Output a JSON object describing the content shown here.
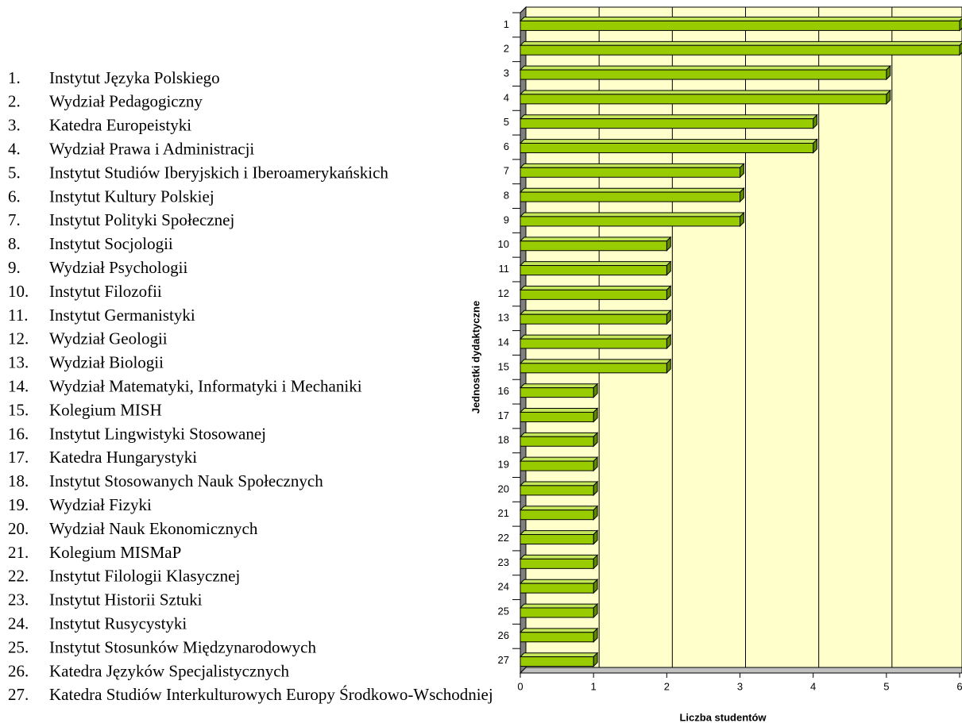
{
  "list": [
    {
      "number": "1.",
      "name": "Instytut Języka Polskiego"
    },
    {
      "number": "2.",
      "name": "Wydział Pedagogiczny"
    },
    {
      "number": "3.",
      "name": "Katedra Europeistyki"
    },
    {
      "number": "4.",
      "name": "Wydział Prawa i Administracji"
    },
    {
      "number": "5.",
      "name": "Instytut Studiów Iberyjskich i Iberoamerykańskich"
    },
    {
      "number": "6.",
      "name": "Instytut Kultury Polskiej"
    },
    {
      "number": "7.",
      "name": "Instytut Polityki Społecznej"
    },
    {
      "number": "8.",
      "name": "Instytut Socjologii"
    },
    {
      "number": "9.",
      "name": "Wydział Psychologii"
    },
    {
      "number": "10.",
      "name": "Instytut Filozofii"
    },
    {
      "number": "11.",
      "name": "Instytut Germanistyki"
    },
    {
      "number": "12.",
      "name": "Wydział Geologii"
    },
    {
      "number": "13.",
      "name": "Wydział Biologii"
    },
    {
      "number": "14.",
      "name": "Wydział Matematyki, Informatyki i Mechaniki"
    },
    {
      "number": "15.",
      "name": "Kolegium MISH"
    },
    {
      "number": "16.",
      "name": "Instytut Lingwistyki Stosowanej"
    },
    {
      "number": "17.",
      "name": "Katedra Hungarystyki"
    },
    {
      "number": "18.",
      "name": "Instytut Stosowanych Nauk Społecznych"
    },
    {
      "number": "19.",
      "name": "Wydział Fizyki"
    },
    {
      "number": "20.",
      "name": "Wydział Nauk Ekonomicznych"
    },
    {
      "number": "21.",
      "name": "Kolegium MISMaP"
    },
    {
      "number": "22.",
      "name": "Instytut Filologii Klasycznej"
    },
    {
      "number": "23.",
      "name": "Instytut Historii Sztuki"
    },
    {
      "number": "24.",
      "name": "Instytut Rusycystyki"
    },
    {
      "number": "25.",
      "name": "Instytut Stosunków Międzynarodowych"
    },
    {
      "number": "26.",
      "name": "Katedra Języków Specjalistycznych"
    },
    {
      "number": "27.",
      "name": "Katedra Studiów Interkulturowych Europy Środkowo-Wschodniej"
    }
  ],
  "chart_data": {
    "type": "bar",
    "orientation": "horizontal",
    "categories": [
      "1",
      "2",
      "3",
      "4",
      "5",
      "6",
      "7",
      "8",
      "9",
      "10",
      "11",
      "12",
      "13",
      "14",
      "15",
      "16",
      "17",
      "18",
      "19",
      "20",
      "21",
      "22",
      "23",
      "24",
      "25",
      "26",
      "27"
    ],
    "values": [
      6,
      6,
      5,
      5,
      4,
      4,
      3,
      3,
      3,
      2,
      2,
      2,
      2,
      2,
      2,
      1,
      1,
      1,
      1,
      1,
      1,
      1,
      1,
      1,
      1,
      1,
      1
    ],
    "color": "#99cc00",
    "xlim": [
      0,
      6
    ],
    "xticks": [
      0,
      1,
      2,
      3,
      4,
      5,
      6
    ],
    "grid": true,
    "xlabel": "Liczba studentów",
    "ylabel": "Jednostki dydaktyczne"
  }
}
